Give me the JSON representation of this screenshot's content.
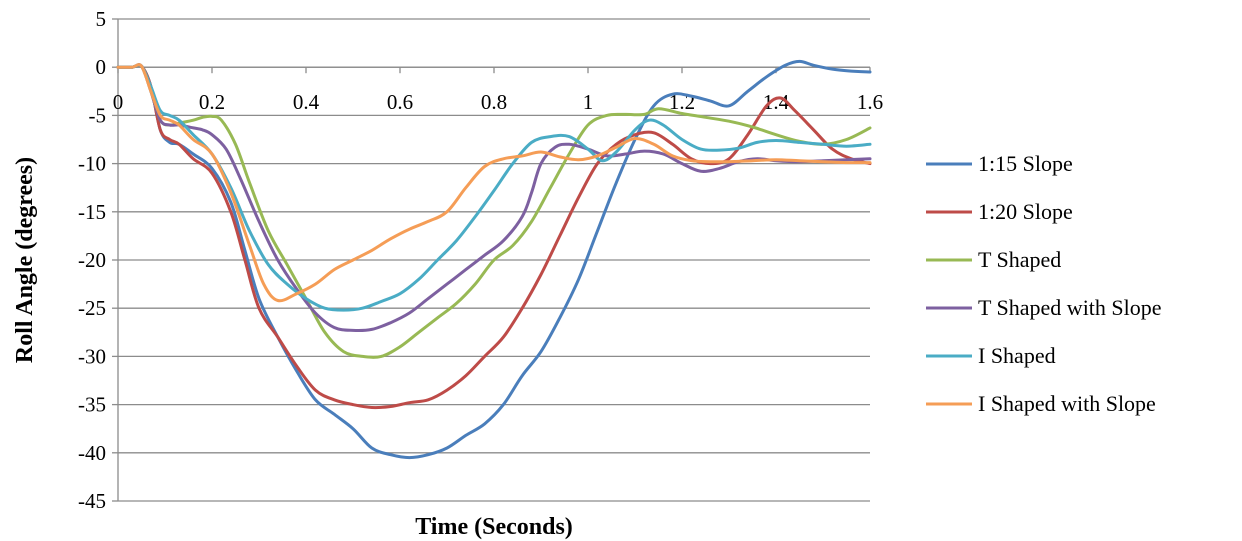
{
  "chart_data": {
    "type": "line",
    "title": "",
    "xlabel": "Time (Seconds)",
    "ylabel": "Roll Angle (degrees)",
    "xlim": [
      0,
      1.6
    ],
    "ylim": [
      -45,
      5
    ],
    "x_ticks": [
      "0",
      "0.2",
      "0.4",
      "0.6",
      "0.8",
      "1",
      "1.2",
      "1.4",
      "1.6"
    ],
    "y_ticks": [
      "5",
      "0",
      "-5",
      "-10",
      "-15",
      "-20",
      "-25",
      "-30",
      "-35",
      "-40",
      "-45"
    ],
    "grid": "horizontal",
    "legend_position": "right",
    "series": [
      {
        "name": "1:15 Slope",
        "color": "#4a7ebb",
        "points": [
          [
            0,
            0
          ],
          [
            0.03,
            0
          ],
          [
            0.05,
            0.1
          ],
          [
            0.07,
            -2
          ],
          [
            0.09,
            -6.5
          ],
          [
            0.11,
            -7.8
          ],
          [
            0.13,
            -8
          ],
          [
            0.16,
            -9
          ],
          [
            0.2,
            -10.5
          ],
          [
            0.24,
            -14
          ],
          [
            0.27,
            -19
          ],
          [
            0.3,
            -24
          ],
          [
            0.34,
            -28
          ],
          [
            0.38,
            -31.5
          ],
          [
            0.42,
            -34.5
          ],
          [
            0.46,
            -36
          ],
          [
            0.5,
            -37.5
          ],
          [
            0.54,
            -39.5
          ],
          [
            0.58,
            -40.2
          ],
          [
            0.62,
            -40.5
          ],
          [
            0.66,
            -40.2
          ],
          [
            0.7,
            -39.5
          ],
          [
            0.74,
            -38.2
          ],
          [
            0.78,
            -37
          ],
          [
            0.82,
            -35
          ],
          [
            0.86,
            -32
          ],
          [
            0.9,
            -29.5
          ],
          [
            0.94,
            -26
          ],
          [
            0.98,
            -22
          ],
          [
            1.02,
            -17
          ],
          [
            1.06,
            -12
          ],
          [
            1.1,
            -7.5
          ],
          [
            1.14,
            -4
          ],
          [
            1.18,
            -2.8
          ],
          [
            1.22,
            -3
          ],
          [
            1.26,
            -3.5
          ],
          [
            1.3,
            -4
          ],
          [
            1.34,
            -2.5
          ],
          [
            1.38,
            -1
          ],
          [
            1.42,
            0.2
          ],
          [
            1.45,
            0.6
          ],
          [
            1.48,
            0.2
          ],
          [
            1.52,
            -0.2
          ],
          [
            1.56,
            -0.4
          ],
          [
            1.6,
            -0.5
          ]
        ]
      },
      {
        "name": "1:20 Slope",
        "color": "#be4b48",
        "points": [
          [
            0,
            0
          ],
          [
            0.03,
            0
          ],
          [
            0.05,
            0.1
          ],
          [
            0.07,
            -2
          ],
          [
            0.09,
            -6.5
          ],
          [
            0.11,
            -7.5
          ],
          [
            0.13,
            -8
          ],
          [
            0.16,
            -9.5
          ],
          [
            0.2,
            -11
          ],
          [
            0.24,
            -15
          ],
          [
            0.27,
            -20
          ],
          [
            0.3,
            -25
          ],
          [
            0.34,
            -28
          ],
          [
            0.38,
            -31
          ],
          [
            0.42,
            -33.5
          ],
          [
            0.46,
            -34.5
          ],
          [
            0.5,
            -35
          ],
          [
            0.54,
            -35.3
          ],
          [
            0.58,
            -35.2
          ],
          [
            0.62,
            -34.8
          ],
          [
            0.66,
            -34.5
          ],
          [
            0.7,
            -33.5
          ],
          [
            0.74,
            -32
          ],
          [
            0.78,
            -30
          ],
          [
            0.82,
            -28
          ],
          [
            0.86,
            -25
          ],
          [
            0.9,
            -21.5
          ],
          [
            0.94,
            -17.5
          ],
          [
            0.98,
            -13.5
          ],
          [
            1.02,
            -10
          ],
          [
            1.06,
            -8
          ],
          [
            1.1,
            -7
          ],
          [
            1.14,
            -6.8
          ],
          [
            1.18,
            -8
          ],
          [
            1.22,
            -9.5
          ],
          [
            1.26,
            -10
          ],
          [
            1.3,
            -9.5
          ],
          [
            1.34,
            -7
          ],
          [
            1.38,
            -4
          ],
          [
            1.41,
            -3.2
          ],
          [
            1.44,
            -4.5
          ],
          [
            1.48,
            -6.5
          ],
          [
            1.52,
            -8.5
          ],
          [
            1.56,
            -9.5
          ],
          [
            1.6,
            -10
          ]
        ]
      },
      {
        "name": "T Shaped",
        "color": "#98b954",
        "points": [
          [
            0,
            0
          ],
          [
            0.03,
            0
          ],
          [
            0.05,
            0.1
          ],
          [
            0.07,
            -2.5
          ],
          [
            0.09,
            -5.5
          ],
          [
            0.11,
            -6
          ],
          [
            0.13,
            -5.8
          ],
          [
            0.16,
            -5.5
          ],
          [
            0.18,
            -5.2
          ],
          [
            0.2,
            -5.1
          ],
          [
            0.22,
            -5.5
          ],
          [
            0.25,
            -8
          ],
          [
            0.28,
            -12
          ],
          [
            0.32,
            -17
          ],
          [
            0.36,
            -20.5
          ],
          [
            0.4,
            -24
          ],
          [
            0.44,
            -27.5
          ],
          [
            0.48,
            -29.5
          ],
          [
            0.52,
            -30
          ],
          [
            0.56,
            -30
          ],
          [
            0.6,
            -29
          ],
          [
            0.64,
            -27.5
          ],
          [
            0.68,
            -26
          ],
          [
            0.72,
            -24.5
          ],
          [
            0.76,
            -22.5
          ],
          [
            0.8,
            -20
          ],
          [
            0.84,
            -18.5
          ],
          [
            0.88,
            -16
          ],
          [
            0.92,
            -12.5
          ],
          [
            0.96,
            -9
          ],
          [
            1.0,
            -6
          ],
          [
            1.04,
            -5
          ],
          [
            1.08,
            -4.9
          ],
          [
            1.12,
            -4.9
          ],
          [
            1.15,
            -4.3
          ],
          [
            1.2,
            -4.8
          ],
          [
            1.25,
            -5.2
          ],
          [
            1.3,
            -5.6
          ],
          [
            1.35,
            -6.2
          ],
          [
            1.4,
            -7
          ],
          [
            1.45,
            -7.7
          ],
          [
            1.5,
            -8
          ],
          [
            1.55,
            -7.5
          ],
          [
            1.6,
            -6.3
          ]
        ]
      },
      {
        "name": "T Shaped with Slope",
        "color": "#7d60a0",
        "points": [
          [
            0,
            0
          ],
          [
            0.03,
            0
          ],
          [
            0.05,
            0.1
          ],
          [
            0.07,
            -2.5
          ],
          [
            0.09,
            -5.5
          ],
          [
            0.11,
            -6
          ],
          [
            0.13,
            -6
          ],
          [
            0.16,
            -6.3
          ],
          [
            0.18,
            -6.5
          ],
          [
            0.2,
            -7
          ],
          [
            0.23,
            -8.5
          ],
          [
            0.26,
            -11.5
          ],
          [
            0.3,
            -16
          ],
          [
            0.34,
            -20
          ],
          [
            0.38,
            -23
          ],
          [
            0.42,
            -25.5
          ],
          [
            0.46,
            -27
          ],
          [
            0.5,
            -27.3
          ],
          [
            0.54,
            -27.2
          ],
          [
            0.58,
            -26.5
          ],
          [
            0.62,
            -25.5
          ],
          [
            0.66,
            -24
          ],
          [
            0.7,
            -22.5
          ],
          [
            0.74,
            -21
          ],
          [
            0.78,
            -19.5
          ],
          [
            0.82,
            -18
          ],
          [
            0.86,
            -15.5
          ],
          [
            0.88,
            -13
          ],
          [
            0.9,
            -10
          ],
          [
            0.93,
            -8.3
          ],
          [
            0.96,
            -8
          ],
          [
            1.0,
            -8.5
          ],
          [
            1.04,
            -9.2
          ],
          [
            1.08,
            -9
          ],
          [
            1.12,
            -8.7
          ],
          [
            1.16,
            -9
          ],
          [
            1.2,
            -10
          ],
          [
            1.24,
            -10.8
          ],
          [
            1.28,
            -10.5
          ],
          [
            1.32,
            -9.8
          ],
          [
            1.36,
            -9.5
          ],
          [
            1.4,
            -9.7
          ],
          [
            1.45,
            -9.8
          ],
          [
            1.5,
            -9.7
          ],
          [
            1.55,
            -9.6
          ],
          [
            1.6,
            -9.5
          ]
        ]
      },
      {
        "name": "I Shaped",
        "color": "#4aacc5",
        "points": [
          [
            0,
            0
          ],
          [
            0.03,
            0
          ],
          [
            0.05,
            0.1
          ],
          [
            0.07,
            -2
          ],
          [
            0.09,
            -4.5
          ],
          [
            0.11,
            -5
          ],
          [
            0.13,
            -5.5
          ],
          [
            0.16,
            -7
          ],
          [
            0.2,
            -9
          ],
          [
            0.24,
            -12.5
          ],
          [
            0.28,
            -17
          ],
          [
            0.32,
            -20.5
          ],
          [
            0.36,
            -22.5
          ],
          [
            0.4,
            -24
          ],
          [
            0.44,
            -25
          ],
          [
            0.48,
            -25.2
          ],
          [
            0.52,
            -25
          ],
          [
            0.56,
            -24.3
          ],
          [
            0.6,
            -23.5
          ],
          [
            0.64,
            -22
          ],
          [
            0.68,
            -20
          ],
          [
            0.72,
            -18
          ],
          [
            0.76,
            -15.5
          ],
          [
            0.8,
            -12.8
          ],
          [
            0.84,
            -10
          ],
          [
            0.88,
            -7.8
          ],
          [
            0.92,
            -7.2
          ],
          [
            0.96,
            -7.2
          ],
          [
            1.0,
            -8.5
          ],
          [
            1.03,
            -9.7
          ],
          [
            1.06,
            -8.8
          ],
          [
            1.1,
            -6.5
          ],
          [
            1.13,
            -5.5
          ],
          [
            1.16,
            -6
          ],
          [
            1.2,
            -7.5
          ],
          [
            1.24,
            -8.5
          ],
          [
            1.28,
            -8.6
          ],
          [
            1.32,
            -8.4
          ],
          [
            1.36,
            -7.8
          ],
          [
            1.4,
            -7.6
          ],
          [
            1.45,
            -7.8
          ],
          [
            1.5,
            -8
          ],
          [
            1.55,
            -8.2
          ],
          [
            1.6,
            -8
          ]
        ]
      },
      {
        "name": "I Shaped with Slope",
        "color": "#f59d56",
        "points": [
          [
            0,
            0
          ],
          [
            0.03,
            0
          ],
          [
            0.05,
            0.1
          ],
          [
            0.07,
            -2.5
          ],
          [
            0.09,
            -5
          ],
          [
            0.11,
            -5.5
          ],
          [
            0.13,
            -6
          ],
          [
            0.16,
            -7.5
          ],
          [
            0.2,
            -9
          ],
          [
            0.24,
            -13
          ],
          [
            0.28,
            -18.5
          ],
          [
            0.31,
            -22.5
          ],
          [
            0.34,
            -24.2
          ],
          [
            0.38,
            -23.5
          ],
          [
            0.42,
            -22.5
          ],
          [
            0.46,
            -21
          ],
          [
            0.5,
            -20
          ],
          [
            0.54,
            -19
          ],
          [
            0.58,
            -17.8
          ],
          [
            0.62,
            -16.8
          ],
          [
            0.66,
            -16
          ],
          [
            0.7,
            -15
          ],
          [
            0.74,
            -12.5
          ],
          [
            0.78,
            -10.3
          ],
          [
            0.82,
            -9.5
          ],
          [
            0.86,
            -9.2
          ],
          [
            0.9,
            -8.8
          ],
          [
            0.94,
            -9.3
          ],
          [
            0.98,
            -9.6
          ],
          [
            1.02,
            -9.2
          ],
          [
            1.06,
            -8.3
          ],
          [
            1.1,
            -7.4
          ],
          [
            1.14,
            -8
          ],
          [
            1.18,
            -9.2
          ],
          [
            1.22,
            -9.7
          ],
          [
            1.26,
            -9.8
          ],
          [
            1.3,
            -9.8
          ],
          [
            1.35,
            -9.7
          ],
          [
            1.4,
            -9.6
          ],
          [
            1.45,
            -9.7
          ],
          [
            1.5,
            -9.8
          ],
          [
            1.55,
            -9.9
          ],
          [
            1.6,
            -9.9
          ]
        ]
      }
    ]
  }
}
